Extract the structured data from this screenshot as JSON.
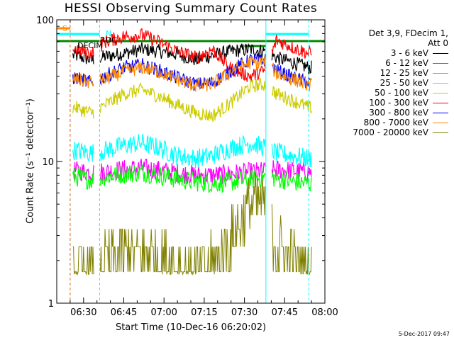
{
  "title": "HESSI Observing Summary Count Rates",
  "stamp": "5-Dec-2017 09:47",
  "legend": {
    "header_line1": "Det 3,9, FDecim 1,",
    "header_line2": "Att 0"
  },
  "flag_labels": {
    "saa": "S",
    "night": "N",
    "decimation": "DECIM",
    "rdecim": "RDC"
  },
  "chart_data": {
    "type": "line",
    "title": "HESSI Observing Summary Count Rates",
    "xlabel": "Start Time (10-Dec-16 06:20:02)",
    "ylabel": "Count Rate (s⁻¹ detector⁻¹)",
    "yscale": "log",
    "ylim": [
      1,
      100
    ],
    "xlim": [
      "06:20",
      "08:00"
    ],
    "xticks": [
      "06:30",
      "06:45",
      "07:00",
      "07:15",
      "07:30",
      "07:45",
      "08:00"
    ],
    "yticks": [
      "1",
      "10",
      "100"
    ],
    "legend_position": "right",
    "data_start": "06:26",
    "data_end": "07:55",
    "gaps": [
      {
        "start": "06:34",
        "end": "06:36"
      },
      {
        "start": "07:38",
        "end": "07:40"
      }
    ],
    "vertical_markers": [
      {
        "time": "06:25",
        "color": "#d2691e",
        "style": "dashed"
      },
      {
        "time": "06:36",
        "color": "#00ffff",
        "style": "dashed"
      },
      {
        "time": "07:38",
        "color": "#00ffff",
        "style": "solid"
      },
      {
        "time": "07:54",
        "color": "#00ffff",
        "style": "dashed"
      }
    ],
    "series": [
      {
        "name": "3 - 6 keV",
        "color": "#000000",
        "x": [
          "06:27",
          "06:33",
          "06:38",
          "06:45",
          "06:52",
          "06:58",
          "07:05",
          "07:12",
          "07:18",
          "07:25",
          "07:32",
          "07:38",
          "07:42",
          "07:48",
          "07:54"
        ],
        "y": [
          56,
          52,
          55,
          58,
          62,
          60,
          57,
          52,
          56,
          60,
          62,
          60,
          54,
          50,
          46
        ]
      },
      {
        "name": "6 - 12 keV",
        "color": "#ff00ff",
        "x": [
          "06:27",
          "06:33",
          "06:38",
          "06:45",
          "06:52",
          "06:58",
          "07:05",
          "07:12",
          "07:18",
          "07:25",
          "07:32",
          "07:38",
          "07:42",
          "07:48",
          "07:54"
        ],
        "y": [
          8.6,
          8.4,
          8.5,
          8.8,
          9.0,
          8.7,
          8.3,
          8.0,
          8.0,
          8.2,
          8.4,
          8.6,
          8.8,
          8.6,
          8.4
        ]
      },
      {
        "name": "12 - 25 keV",
        "color": "#00ff00",
        "x": [
          "06:27",
          "06:33",
          "06:38",
          "06:45",
          "06:52",
          "06:58",
          "07:05",
          "07:12",
          "07:18",
          "07:25",
          "07:32",
          "07:38",
          "07:42",
          "07:48",
          "07:54"
        ],
        "y": [
          7.8,
          7.4,
          7.8,
          8.2,
          8.4,
          8.0,
          7.5,
          7.2,
          7.0,
          7.2,
          7.4,
          7.8,
          7.6,
          7.2,
          7.0
        ]
      },
      {
        "name": "25 - 50 keV",
        "color": "#00ffff",
        "x": [
          "06:27",
          "06:33",
          "06:38",
          "06:45",
          "06:52",
          "06:58",
          "07:05",
          "07:12",
          "07:18",
          "07:25",
          "07:32",
          "07:38",
          "07:42",
          "07:48",
          "07:54"
        ],
        "y": [
          12,
          11.5,
          12,
          13,
          13.5,
          12.5,
          11,
          10.5,
          11,
          12.5,
          13.5,
          12.5,
          11.5,
          11,
          10.5
        ]
      },
      {
        "name": "50 - 100 keV",
        "color": "#cccc00",
        "x": [
          "06:27",
          "06:33",
          "06:38",
          "06:45",
          "06:52",
          "06:58",
          "07:05",
          "07:12",
          "07:18",
          "07:25",
          "07:32",
          "07:38",
          "07:42",
          "07:48",
          "07:54"
        ],
        "y": [
          24,
          22,
          25,
          30,
          32,
          29,
          25,
          22,
          21,
          26,
          34,
          35,
          30,
          27,
          24
        ]
      },
      {
        "name": "100 - 300 keV",
        "color": "#ff0000",
        "x": [
          "06:27",
          "06:33",
          "06:38",
          "06:45",
          "06:52",
          "06:58",
          "07:05",
          "07:12",
          "07:18",
          "07:25",
          "07:32",
          "07:38",
          "07:42",
          "07:48",
          "07:54"
        ],
        "y": [
          62,
          58,
          70,
          76,
          78,
          70,
          60,
          54,
          62,
          45,
          40,
          44,
          72,
          64,
          58
        ]
      },
      {
        "name": "300 - 800 keV",
        "color": "#0000ff",
        "x": [
          "06:27",
          "06:33",
          "06:38",
          "06:45",
          "06:52",
          "06:58",
          "07:05",
          "07:12",
          "07:18",
          "07:25",
          "07:32",
          "07:38",
          "07:42",
          "07:48",
          "07:54"
        ],
        "y": [
          39,
          36,
          40,
          46,
          48,
          44,
          39,
          35,
          36,
          44,
          52,
          52,
          44,
          39,
          36
        ]
      },
      {
        "name": "800 - 7000 keV",
        "color": "#ff8800",
        "x": [
          "06:27",
          "06:33",
          "06:38",
          "06:45",
          "06:52",
          "06:58",
          "07:05",
          "07:12",
          "07:18",
          "07:25",
          "07:32",
          "07:38",
          "07:42",
          "07:48",
          "07:54"
        ],
        "y": [
          38,
          36,
          38,
          43,
          46,
          43,
          38,
          34,
          35,
          43,
          50,
          50,
          42,
          38,
          35
        ]
      },
      {
        "name": "7000 - 20000 keV",
        "color": "#808000",
        "x": [
          "06:27",
          "06:33",
          "06:38",
          "06:45",
          "06:52",
          "06:58",
          "07:05",
          "07:12",
          "07:18",
          "07:25",
          "07:32",
          "07:38",
          "07:42",
          "07:48",
          "07:54"
        ],
        "y": [
          1.7,
          1.6,
          1.8,
          2.2,
          2.3,
          2.1,
          1.8,
          1.7,
          1.8,
          2.8,
          5.0,
          5.0,
          2.6,
          2.0,
          1.6
        ]
      }
    ]
  }
}
